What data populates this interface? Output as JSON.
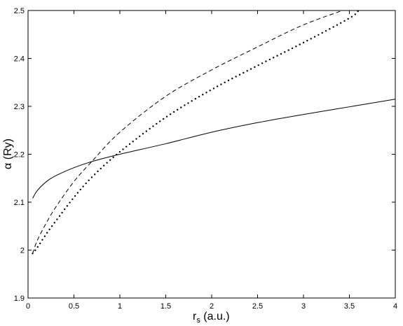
{
  "chart_data": {
    "type": "line",
    "title": "",
    "xlabel_main": "r",
    "xlabel_sub": "s",
    "xlabel_rest": " (a.u.)",
    "ylabel": "α (Ry)",
    "xlim": [
      0,
      4
    ],
    "ylim": [
      1.9,
      2.5
    ],
    "xticks": [
      "0",
      "0.5",
      "1",
      "1.5",
      "2",
      "2.5",
      "3",
      "3.5",
      "4"
    ],
    "yticks": [
      "1.9",
      "2",
      "2.1",
      "2.2",
      "2.3",
      "2.4",
      "2.5"
    ],
    "grid": false,
    "series": [
      {
        "style": "solid",
        "x": [
          0.05,
          0.1,
          0.2,
          0.3,
          0.5,
          0.7,
          1.0,
          1.5,
          2.0,
          2.5,
          3.0,
          3.5,
          4.0
        ],
        "y": [
          2.108,
          2.124,
          2.143,
          2.155,
          2.172,
          2.185,
          2.2,
          2.222,
          2.246,
          2.266,
          2.283,
          2.299,
          2.315
        ]
      },
      {
        "style": "dashed",
        "x": [
          0.05,
          0.1,
          0.2,
          0.3,
          0.5,
          0.7,
          1.0,
          1.5,
          2.0,
          2.5,
          3.0,
          3.5
        ],
        "y": [
          1.993,
          2.02,
          2.057,
          2.089,
          2.143,
          2.186,
          2.246,
          2.321,
          2.376,
          2.424,
          2.47,
          2.505
        ]
      },
      {
        "style": "dotted",
        "x": [
          0.05,
          0.1,
          0.2,
          0.3,
          0.5,
          0.7,
          1.0,
          1.5,
          2.0,
          2.5,
          3.0,
          3.5,
          3.6
        ],
        "y": [
          1.993,
          2.005,
          2.034,
          2.06,
          2.11,
          2.153,
          2.205,
          2.277,
          2.335,
          2.385,
          2.433,
          2.484,
          2.5
        ]
      }
    ]
  }
}
